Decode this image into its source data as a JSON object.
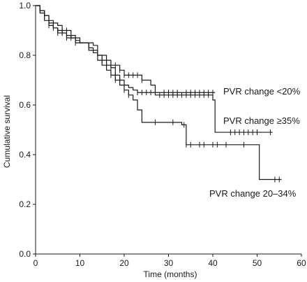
{
  "chart_data": {
    "type": "line",
    "title": "",
    "xlabel": "Time (months)",
    "ylabel": "Cumulative survival",
    "xlim": [
      0,
      60
    ],
    "ylim": [
      0,
      1.0
    ],
    "xticks": [
      "0",
      "10",
      "20",
      "30",
      "40",
      "50",
      "60"
    ],
    "yticks": [
      "0.0",
      "0.2",
      "0.4",
      "0.6",
      "0.8",
      "1.0"
    ],
    "grid": false,
    "line_color": "#1a1a1a",
    "series": [
      {
        "name": "PVR change <20%",
        "steps": [
          [
            0,
            1.0
          ],
          [
            1,
            0.97
          ],
          [
            2,
            0.94
          ],
          [
            3,
            0.92
          ],
          [
            4,
            0.91
          ],
          [
            5,
            0.9
          ],
          [
            6,
            0.89
          ],
          [
            7,
            0.88
          ],
          [
            8,
            0.87
          ],
          [
            10,
            0.85
          ],
          [
            12,
            0.83
          ],
          [
            13,
            0.81
          ],
          [
            14,
            0.78
          ],
          [
            15,
            0.76
          ],
          [
            16,
            0.74
          ],
          [
            17,
            0.72
          ],
          [
            18,
            0.7
          ],
          [
            19,
            0.68
          ],
          [
            21,
            0.67
          ],
          [
            22,
            0.66
          ],
          [
            23,
            0.65
          ],
          [
            40.5,
            0.65
          ]
        ],
        "censor_x": [
          3,
          5,
          6,
          17,
          18,
          23,
          24,
          25,
          26,
          27,
          29,
          30,
          31,
          32,
          34,
          35,
          36,
          37,
          38,
          39,
          40
        ]
      },
      {
        "name": "PVR change ≥35%",
        "steps": [
          [
            0,
            1.0
          ],
          [
            1,
            0.98
          ],
          [
            2,
            0.96
          ],
          [
            3,
            0.94
          ],
          [
            4,
            0.93
          ],
          [
            5,
            0.92
          ],
          [
            6,
            0.9
          ],
          [
            8,
            0.88
          ],
          [
            9,
            0.86
          ],
          [
            10,
            0.85
          ],
          [
            13,
            0.84
          ],
          [
            14,
            0.8
          ],
          [
            15,
            0.78
          ],
          [
            16,
            0.76
          ],
          [
            19,
            0.74
          ],
          [
            20,
            0.72
          ],
          [
            24,
            0.7
          ],
          [
            26,
            0.68
          ],
          [
            27,
            0.64
          ],
          [
            40,
            0.62
          ],
          [
            40.5,
            0.49
          ],
          [
            53.5,
            0.49
          ]
        ],
        "censor_x": [
          6,
          7,
          15,
          16,
          17,
          18,
          19,
          20,
          21,
          22,
          23,
          24,
          28,
          29,
          30,
          31,
          32,
          33,
          34,
          35,
          36,
          37,
          38,
          39,
          44,
          45,
          46,
          47,
          48,
          49,
          50,
          53
        ]
      },
      {
        "name": "PVR change 20–34%",
        "steps": [
          [
            0,
            1.0
          ],
          [
            1,
            0.98
          ],
          [
            2,
            0.96
          ],
          [
            3,
            0.93
          ],
          [
            4,
            0.91
          ],
          [
            5,
            0.89
          ],
          [
            7,
            0.87
          ],
          [
            9,
            0.85
          ],
          [
            12,
            0.82
          ],
          [
            14,
            0.8
          ],
          [
            16,
            0.78
          ],
          [
            17,
            0.75
          ],
          [
            18,
            0.72
          ],
          [
            19,
            0.7
          ],
          [
            20,
            0.66
          ],
          [
            21,
            0.64
          ],
          [
            22,
            0.62
          ],
          [
            23,
            0.58
          ],
          [
            24,
            0.53
          ],
          [
            33,
            0.52
          ],
          [
            34,
            0.44
          ],
          [
            50,
            0.44
          ],
          [
            50.5,
            0.3
          ],
          [
            55.5,
            0.3
          ]
        ],
        "censor_x": [
          1,
          2,
          3,
          4,
          5,
          6,
          7,
          8,
          9,
          17,
          18,
          19,
          20,
          21,
          27,
          31,
          33.5,
          34,
          35,
          37,
          38,
          40,
          41,
          43,
          47,
          54,
          55
        ]
      }
    ]
  }
}
